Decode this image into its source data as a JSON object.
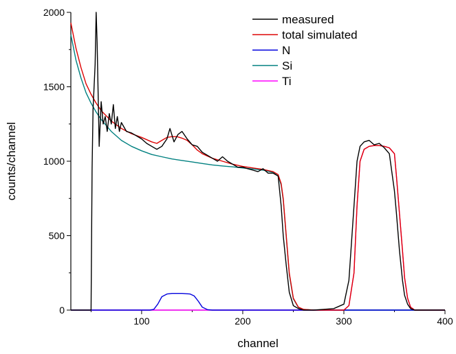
{
  "chart_data": {
    "type": "line",
    "xlabel": "channel",
    "ylabel": "counts/channel",
    "xlim": [
      30,
      400
    ],
    "ylim": [
      0,
      2000
    ],
    "x_ticks": [
      100,
      200,
      300,
      400
    ],
    "y_ticks": [
      0,
      500,
      1000,
      1500,
      2000
    ],
    "x_tick_labels": [
      "100",
      "200",
      "300",
      "400"
    ],
    "y_tick_labels": [
      "0",
      "500",
      "1000",
      "1500",
      "2000"
    ],
    "grid": false,
    "legend_position": "top-right",
    "series": [
      {
        "name": "measured",
        "color": "#000000",
        "x": [
          30,
          50,
          51,
          52,
          54,
          55,
          56,
          58,
          60,
          62,
          64,
          66,
          68,
          70,
          72,
          74,
          76,
          78,
          80,
          85,
          90,
          95,
          100,
          105,
          110,
          115,
          120,
          125,
          128,
          132,
          136,
          140,
          145,
          150,
          155,
          160,
          165,
          170,
          175,
          180,
          185,
          190,
          195,
          200,
          205,
          210,
          215,
          220,
          225,
          230,
          235,
          238,
          240,
          243,
          246,
          250,
          255,
          260,
          270,
          280,
          290,
          300,
          305,
          310,
          313,
          316,
          320,
          325,
          330,
          335,
          340,
          345,
          350,
          352,
          355,
          358,
          360,
          363,
          366,
          370,
          380,
          390,
          400
        ],
        "y": [
          0,
          0,
          950,
          1350,
          1650,
          2000,
          1800,
          1100,
          1400,
          1250,
          1300,
          1200,
          1320,
          1250,
          1380,
          1220,
          1300,
          1200,
          1260,
          1200,
          1190,
          1170,
          1150,
          1120,
          1100,
          1080,
          1100,
          1150,
          1220,
          1130,
          1180,
          1200,
          1150,
          1110,
          1100,
          1060,
          1040,
          1020,
          1000,
          1030,
          1000,
          980,
          960,
          960,
          950,
          940,
          930,
          950,
          920,
          920,
          900,
          700,
          500,
          300,
          120,
          30,
          10,
          0,
          0,
          5,
          10,
          40,
          200,
          700,
          1000,
          1100,
          1130,
          1140,
          1110,
          1120,
          1090,
          1050,
          800,
          650,
          400,
          200,
          100,
          40,
          10,
          0,
          0,
          0,
          0
        ]
      },
      {
        "name": "total simulated",
        "color": "#dd0000",
        "x": [
          30,
          35,
          40,
          45,
          50,
          55,
          60,
          70,
          80,
          90,
          100,
          110,
          115,
          120,
          125,
          130,
          135,
          140,
          145,
          150,
          155,
          160,
          170,
          180,
          190,
          200,
          210,
          220,
          230,
          235,
          238,
          240,
          243,
          246,
          250,
          255,
          260,
          270,
          280,
          290,
          300,
          305,
          310,
          313,
          316,
          320,
          325,
          330,
          335,
          340,
          345,
          350,
          352,
          355,
          358,
          360,
          363,
          366,
          370,
          380,
          390,
          400
        ],
        "y": [
          1930,
          1760,
          1630,
          1520,
          1450,
          1390,
          1340,
          1270,
          1220,
          1185,
          1160,
          1130,
          1120,
          1140,
          1160,
          1165,
          1165,
          1155,
          1140,
          1110,
          1075,
          1050,
          1020,
          1000,
          980,
          965,
          955,
          945,
          930,
          910,
          850,
          750,
          500,
          250,
          80,
          20,
          5,
          0,
          0,
          0,
          0,
          30,
          250,
          700,
          1000,
          1080,
          1100,
          1105,
          1105,
          1100,
          1090,
          1050,
          900,
          650,
          400,
          220,
          80,
          20,
          0,
          0,
          0,
          0
        ]
      },
      {
        "name": "N",
        "color": "#0000dd",
        "x": [
          30,
          100,
          108,
          112,
          116,
          120,
          125,
          130,
          140,
          148,
          152,
          156,
          160,
          165,
          170,
          200,
          300,
          400
        ],
        "y": [
          0,
          0,
          0,
          5,
          40,
          90,
          108,
          112,
          112,
          108,
          95,
          60,
          20,
          3,
          0,
          0,
          0,
          0
        ]
      },
      {
        "name": "Si",
        "color": "#008080",
        "x": [
          30,
          35,
          40,
          45,
          50,
          55,
          60,
          70,
          80,
          90,
          100,
          110,
          120,
          130,
          140,
          150,
          160,
          170,
          180,
          190,
          200,
          210,
          220,
          230,
          235,
          238,
          240,
          243,
          246,
          250,
          255,
          260,
          270,
          300,
          400
        ],
        "y": [
          1850,
          1680,
          1560,
          1460,
          1390,
          1330,
          1280,
          1200,
          1140,
          1100,
          1070,
          1045,
          1030,
          1015,
          1005,
          995,
          985,
          975,
          968,
          962,
          955,
          948,
          940,
          925,
          900,
          840,
          740,
          490,
          240,
          75,
          18,
          5,
          0,
          0,
          0
        ]
      },
      {
        "name": "Ti",
        "color": "#ff00ff",
        "x": [
          30,
          300,
          305,
          310,
          313,
          316,
          320,
          325,
          330,
          335,
          340,
          345,
          350,
          352,
          355,
          358,
          360,
          363,
          366,
          370,
          380,
          400
        ],
        "y": [
          0,
          0,
          30,
          250,
          700,
          1000,
          1080,
          1100,
          1105,
          1105,
          1100,
          1090,
          1050,
          900,
          650,
          400,
          220,
          80,
          20,
          0,
          0,
          0
        ]
      }
    ]
  }
}
